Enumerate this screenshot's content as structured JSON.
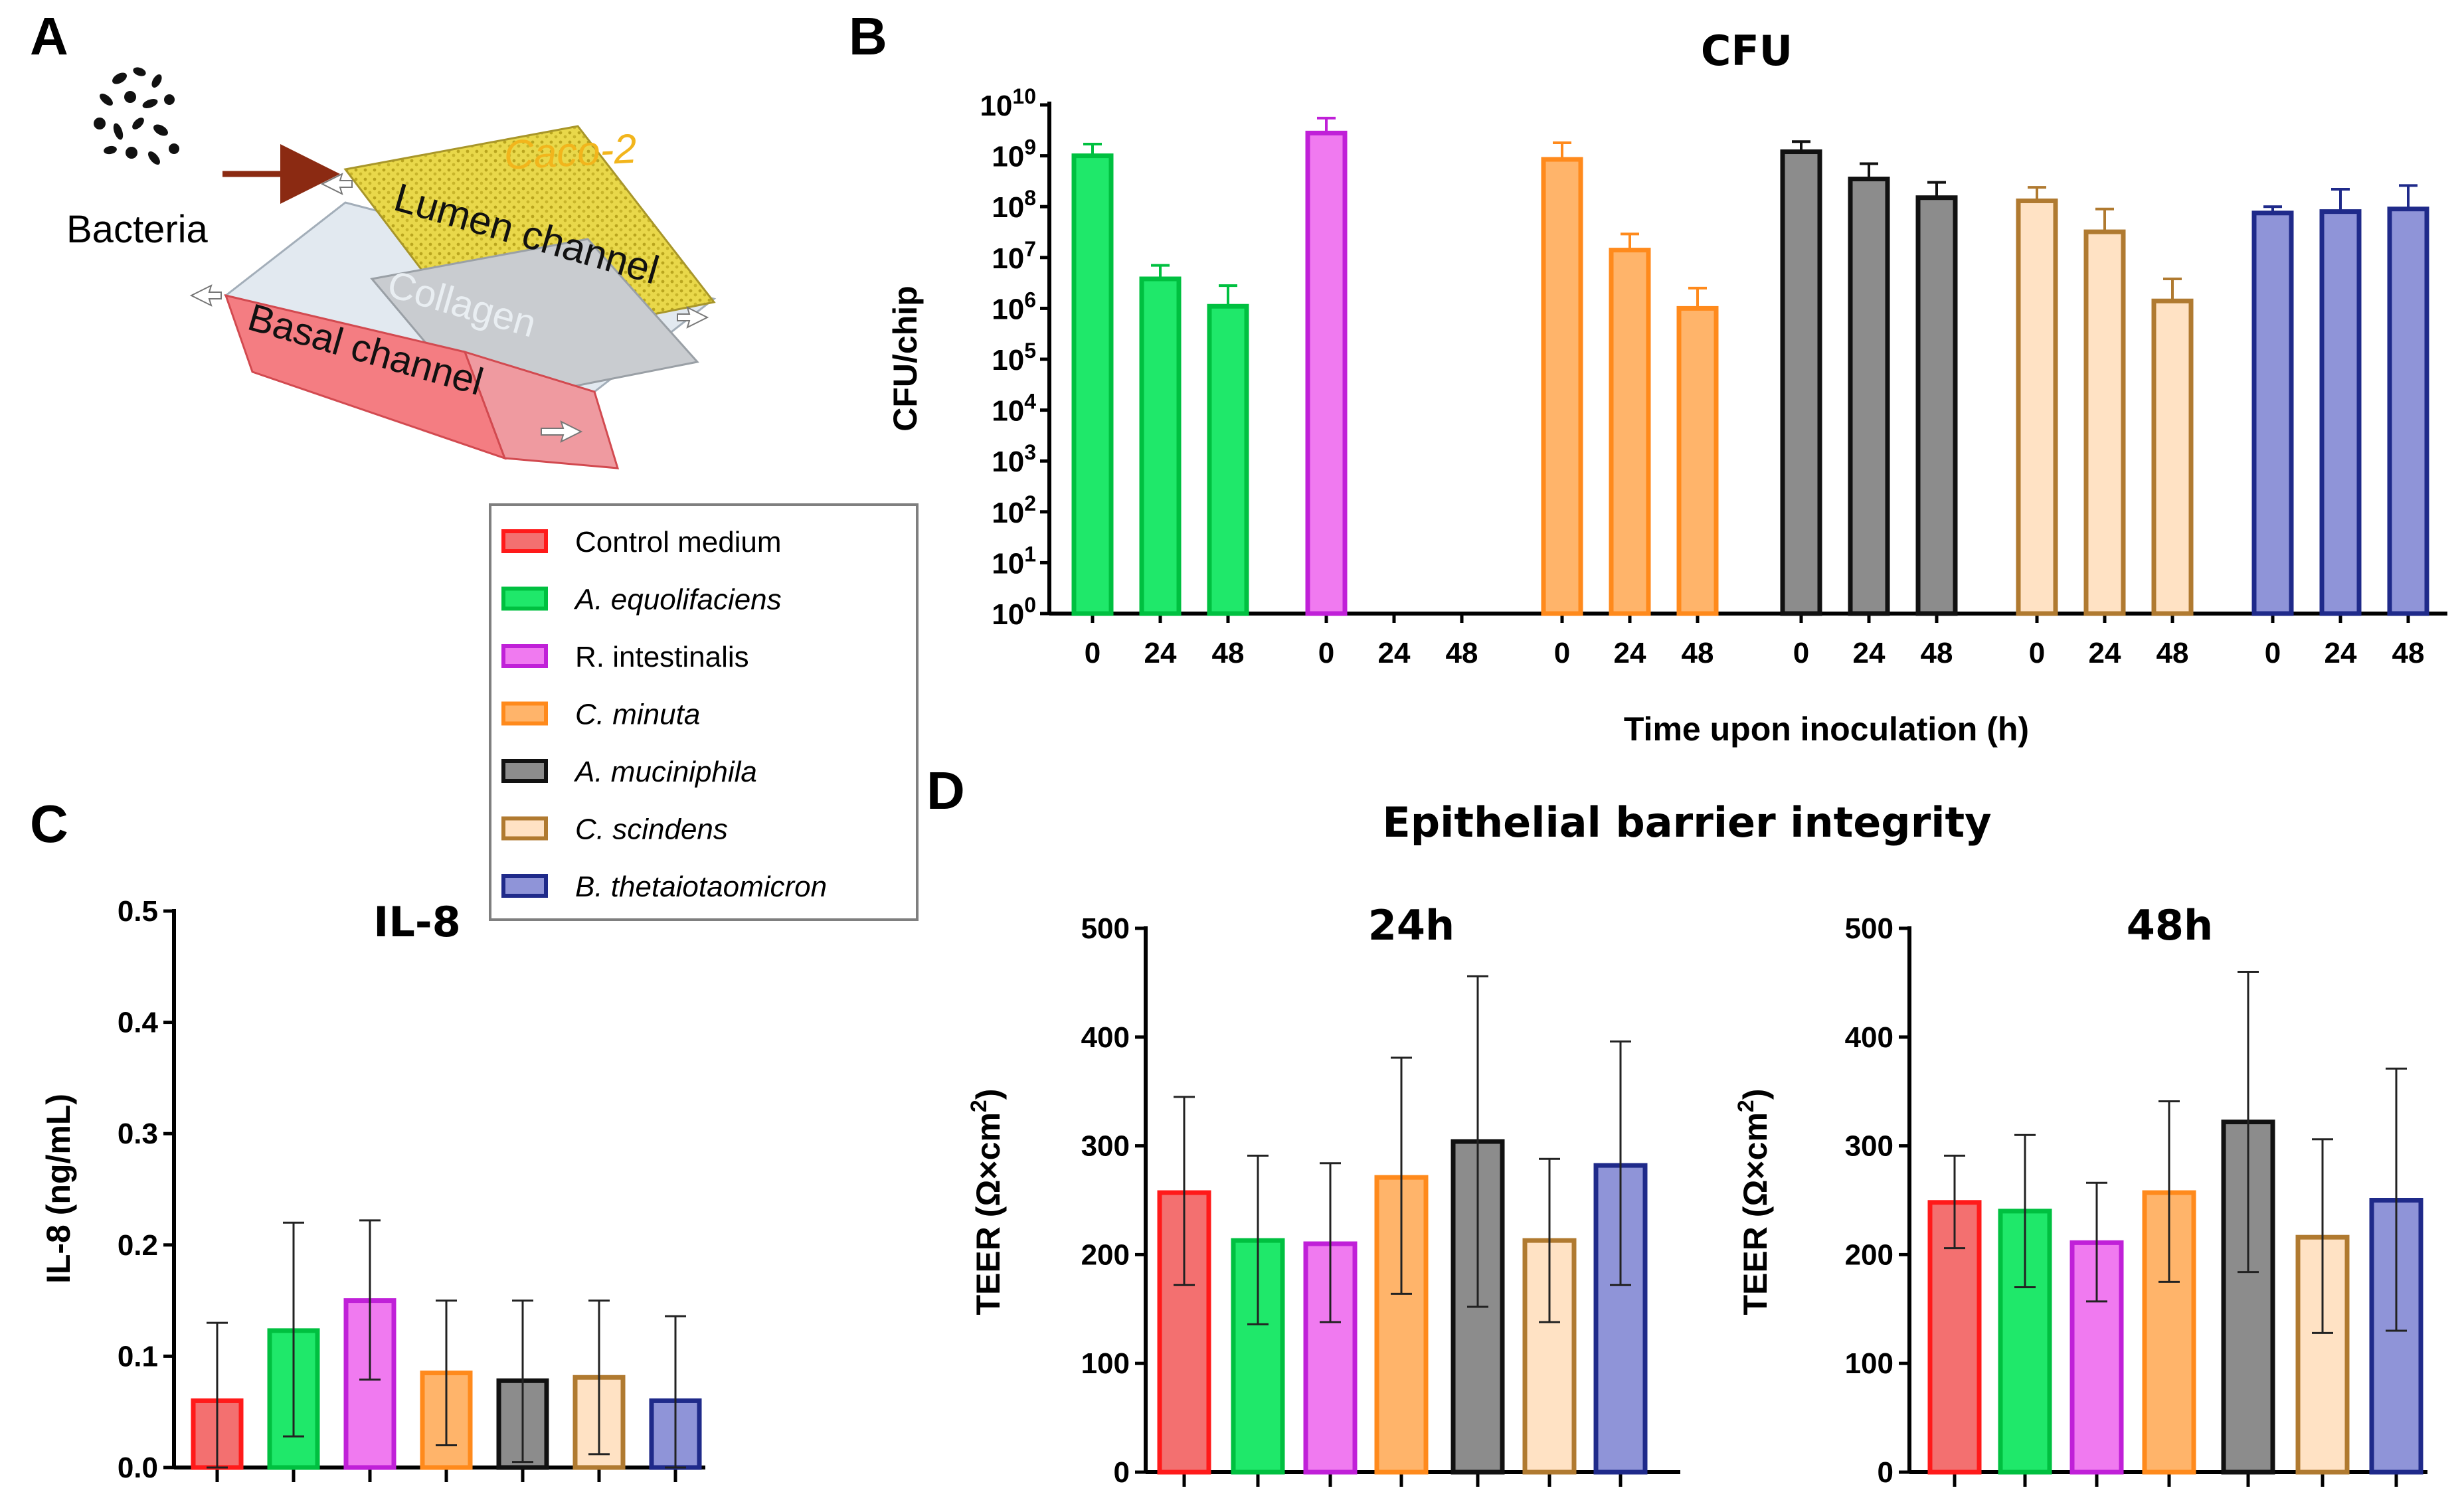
{
  "panels": {
    "a": "A",
    "b": "B",
    "c": "C",
    "d": "D"
  },
  "schematic": {
    "bacteria": "Bacteria",
    "cell_line": "Caco-2",
    "lumen": "Lumen channel",
    "collagen": "Collagen",
    "basal": "Basal channel"
  },
  "legend": [
    {
      "label": "Control medium",
      "italic": false,
      "fill": "#f37070",
      "stroke": "#ff1a1a"
    },
    {
      "label": "A. equolifaciens",
      "italic": true,
      "fill": "#1fe86a",
      "stroke": "#00c040"
    },
    {
      "label": "R. intestinalis",
      "italic": false,
      "fill": "#f07af0",
      "stroke": "#c020d8"
    },
    {
      "label": "C. minuta",
      "italic": true,
      "fill": "#ffb46a",
      "stroke": "#ff8a1c"
    },
    {
      "label": "A. muciniphila",
      "italic": true,
      "fill": "#8c8c8c",
      "stroke": "#111111"
    },
    {
      "label": "C. scindens",
      "italic": true,
      "fill": "#ffe2c4",
      "stroke": "#b07a30"
    },
    {
      "label": "B. thetaiotaomicron",
      "italic": true,
      "fill": "#8f94d8",
      "stroke": "#1f2a8a"
    }
  ],
  "chart_data": [
    {
      "id": "B",
      "type": "bar",
      "title": "CFU",
      "ylabel": "CFU/chip",
      "xlabel": "Time upon inoculation (h)",
      "yscale": "log10",
      "ylim_exp": [
        0,
        10
      ],
      "ytick_labels": [
        "10^0",
        "10^1",
        "10^2",
        "10^3",
        "10^4",
        "10^5",
        "10^6",
        "10^7",
        "10^8",
        "10^9",
        "10^10"
      ],
      "categories": [
        "0",
        "24",
        "48"
      ],
      "series": [
        {
          "name": "A. equolifaciens",
          "values": [
            1000000000.0,
            3800000.0,
            1100000.0
          ],
          "errors_upper": [
            1700000000.0,
            7000000.0,
            2800000.0
          ]
        },
        {
          "name": "R. intestinalis",
          "values": [
            2800000000.0,
            null,
            null
          ],
          "errors_upper": [
            5500000000.0,
            null,
            null
          ]
        },
        {
          "name": "C. minuta",
          "values": [
            850000000.0,
            14000000.0,
            1000000.0
          ],
          "errors_upper": [
            1800000000.0,
            29000000.0,
            2500000.0
          ]
        },
        {
          "name": "A. muciniphila",
          "values": [
            1200000000.0,
            350000000.0,
            150000000.0
          ],
          "errors_upper": [
            1900000000.0,
            700000000.0,
            300000000.0
          ]
        },
        {
          "name": "C. scindens",
          "values": [
            130000000.0,
            32000000.0,
            1400000.0
          ],
          "errors_upper": [
            240000000.0,
            90000000.0,
            3800000.0
          ]
        },
        {
          "name": "B. thetaiotaomicron",
          "values": [
            75000000.0,
            80000000.0,
            90000000.0
          ],
          "errors_upper": [
            100000000.0,
            220000000.0,
            260000000.0
          ]
        }
      ]
    },
    {
      "id": "C",
      "type": "bar",
      "title": "IL-8",
      "ylabel": "IL-8 (ng/mL)",
      "xlabel": "",
      "ylim": [
        0,
        0.5
      ],
      "yticks": [
        "0.0",
        "0.1",
        "0.2",
        "0.3",
        "0.4",
        "0.5"
      ],
      "series_names": [
        "Control medium",
        "A. equolifaciens",
        "R. intestinalis",
        "C. minuta",
        "A. muciniphila",
        "C. scindens",
        "B. thetaiotaomicron"
      ],
      "values": [
        0.06,
        0.123,
        0.15,
        0.085,
        0.078,
        0.081,
        0.06
      ],
      "err_low": [
        0.0,
        0.028,
        0.079,
        0.02,
        0.005,
        0.012,
        0.0
      ],
      "err_high": [
        0.13,
        0.22,
        0.222,
        0.15,
        0.15,
        0.15,
        0.136
      ]
    },
    {
      "id": "D1",
      "type": "bar",
      "suptitle": "Epithelial barrier integrity",
      "title": "24h",
      "ylabel_base": "TEER (Ω×cm",
      "ylabel_sup": "2",
      "ylabel_end": ")",
      "ylim": [
        0,
        500
      ],
      "yticks": [
        "0",
        "100",
        "200",
        "300",
        "400",
        "500"
      ],
      "series_names": [
        "Control medium",
        "A. equolifaciens",
        "R. intestinalis",
        "C. minuta",
        "A. muciniphila",
        "C. scindens",
        "B. thetaiotaomicron"
      ],
      "values": [
        257,
        213,
        210,
        271,
        304,
        213,
        282
      ],
      "err_low": [
        172,
        136,
        138,
        164,
        152,
        138,
        172
      ],
      "err_high": [
        345,
        291,
        284,
        381,
        456,
        288,
        396
      ]
    },
    {
      "id": "D2",
      "type": "bar",
      "title": "48h",
      "ylabel_base": "TEER (Ω×cm",
      "ylabel_sup": "2",
      "ylabel_end": ")",
      "ylim": [
        0,
        500
      ],
      "yticks": [
        "0",
        "100",
        "200",
        "300",
        "400",
        "500"
      ],
      "series_names": [
        "Control medium",
        "A. equolifaciens",
        "R. intestinalis",
        "C. minuta",
        "A. muciniphila",
        "C. scindens",
        "B. thetaiotaomicron"
      ],
      "values": [
        248,
        240,
        211,
        257,
        322,
        216,
        250
      ],
      "err_low": [
        206,
        170,
        157,
        175,
        184,
        128,
        130
      ],
      "err_high": [
        291,
        310,
        266,
        341,
        460,
        306,
        371
      ]
    }
  ]
}
